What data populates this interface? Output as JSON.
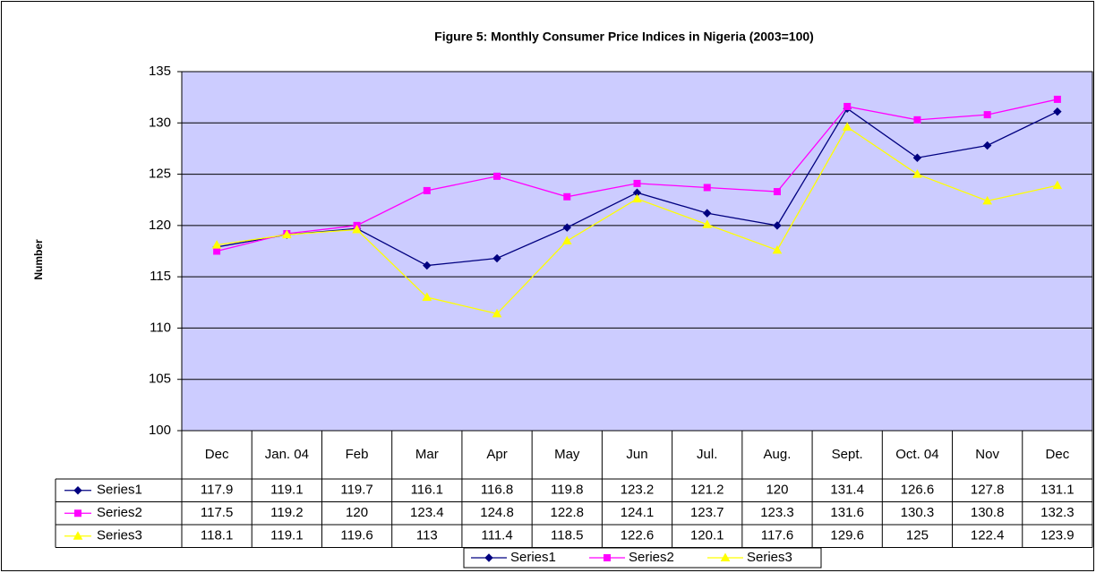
{
  "chart_data": {
    "type": "line",
    "title": "Figure 5: Monthly Consumer Price Indices in Nigeria (2003=100)",
    "y_label": "Number",
    "categories": [
      "Dec",
      "Jan. 04",
      "Feb",
      "Mar",
      "Apr",
      "May",
      "Jun",
      "Jul.",
      "Aug.",
      "Sept.",
      "Oct. 04",
      "Nov",
      "Dec"
    ],
    "series": [
      {
        "name": "Series1",
        "color": "#000080",
        "marker": "diamond",
        "values": [
          117.9,
          119.1,
          119.7,
          116.1,
          116.8,
          119.8,
          123.2,
          121.2,
          120,
          131.4,
          126.6,
          127.8,
          131.1
        ]
      },
      {
        "name": "Series2",
        "color": "#ff00ff",
        "marker": "square",
        "values": [
          117.5,
          119.2,
          120,
          123.4,
          124.8,
          122.8,
          124.1,
          123.7,
          123.3,
          131.6,
          130.3,
          130.8,
          132.3
        ]
      },
      {
        "name": "Series3",
        "color": "#ffff00",
        "marker": "triangle",
        "values": [
          118.1,
          119.1,
          119.6,
          113,
          111.4,
          118.5,
          122.6,
          120.1,
          117.6,
          129.6,
          125,
          122.4,
          123.9
        ]
      }
    ],
    "ylim": [
      100,
      135
    ],
    "yticks": [
      100,
      105,
      110,
      115,
      120,
      125,
      130,
      135
    ],
    "grid": true,
    "plot_background": "#ccccff",
    "data_table": true,
    "legend": "bottom"
  }
}
